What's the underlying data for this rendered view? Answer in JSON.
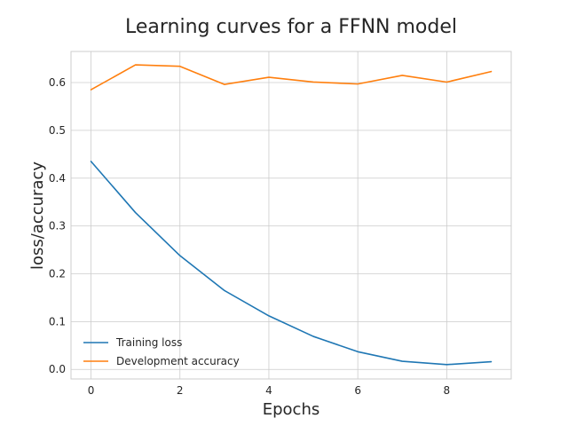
{
  "chart_data": {
    "type": "line",
    "title": "Learning curves for a FFNN model",
    "xlabel": "Epochs",
    "ylabel": "loss/accuracy",
    "x": [
      0,
      1,
      2,
      3,
      4,
      5,
      6,
      7,
      8,
      9
    ],
    "xlim": [
      -0.45,
      9.45
    ],
    "ylim": [
      -0.02,
      0.665
    ],
    "x_ticks": [
      "0",
      "2",
      "4",
      "6",
      "8"
    ],
    "y_ticks": [
      "0.0",
      "0.1",
      "0.2",
      "0.3",
      "0.4",
      "0.5",
      "0.6"
    ],
    "grid": true,
    "legend_position": "lower-left",
    "series": [
      {
        "name": "Training loss",
        "color": "#1f77b4",
        "values": [
          0.435,
          0.328,
          0.238,
          0.165,
          0.112,
          0.069,
          0.037,
          0.017,
          0.01,
          0.016
        ]
      },
      {
        "name": "Development accuracy",
        "color": "#ff7f0e",
        "values": [
          0.585,
          0.637,
          0.634,
          0.596,
          0.611,
          0.601,
          0.597,
          0.615,
          0.601,
          0.623
        ]
      }
    ]
  }
}
